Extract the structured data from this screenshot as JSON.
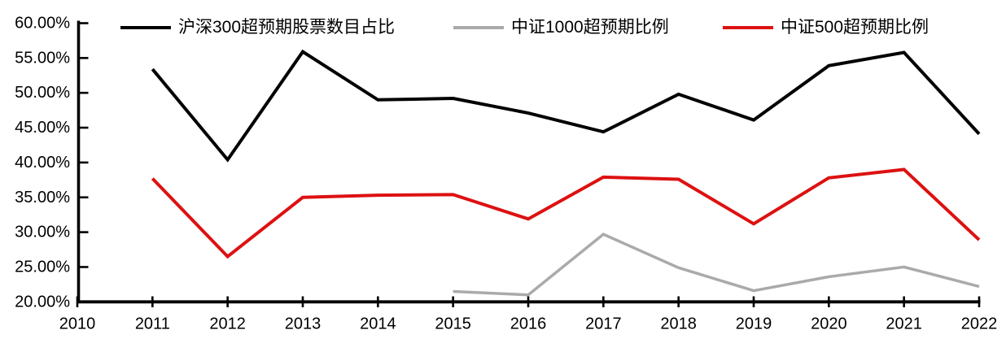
{
  "chart_title": "",
  "axes": {
    "y_tick_labels": [
      "60.00%",
      "55.00%",
      "50.00%",
      "45.00%",
      "40.00%",
      "35.00%",
      "30.00%",
      "25.00%",
      "20.00%"
    ],
    "x_tick_labels": [
      "2010",
      "2011",
      "2012",
      "2013",
      "2014",
      "2015",
      "2016",
      "2017",
      "2018",
      "2019",
      "2020",
      "2021",
      "2022"
    ]
  },
  "colors": {
    "axis": "#000000",
    "tick_text": "#000000",
    "background": "#ffffff"
  },
  "chart_data": {
    "type": "line",
    "x": [
      2010,
      2011,
      2012,
      2013,
      2014,
      2015,
      2016,
      2017,
      2018,
      2019,
      2020,
      2021,
      2022
    ],
    "series": [
      {
        "id": "csi300",
        "name": "沪深300超预期股票数目占比",
        "color": "#000000",
        "stroke_width": 4,
        "values": [
          null,
          53.4,
          40.4,
          55.9,
          49.0,
          49.2,
          47.1,
          44.4,
          49.8,
          46.1,
          53.9,
          55.8,
          44.1
        ]
      },
      {
        "id": "csi1000",
        "name": "中证1000超预期比例",
        "color": "#aaaaaa",
        "stroke_width": 3.5,
        "values": [
          null,
          null,
          null,
          null,
          null,
          21.5,
          21.0,
          29.7,
          24.9,
          21.6,
          23.6,
          25.0,
          22.2
        ]
      },
      {
        "id": "csi500",
        "name": "中证500超预期比例",
        "color": "#dd1111",
        "stroke_width": 4,
        "values": [
          null,
          37.7,
          26.5,
          35.0,
          35.3,
          35.4,
          31.9,
          37.9,
          37.6,
          31.2,
          37.8,
          39.0,
          28.9
        ]
      }
    ],
    "xlabel": "",
    "ylabel": "",
    "ylim": [
      20,
      60
    ],
    "y_step": 5,
    "xlim": [
      2010,
      2022
    ],
    "grid": false,
    "legend_position": "top"
  }
}
